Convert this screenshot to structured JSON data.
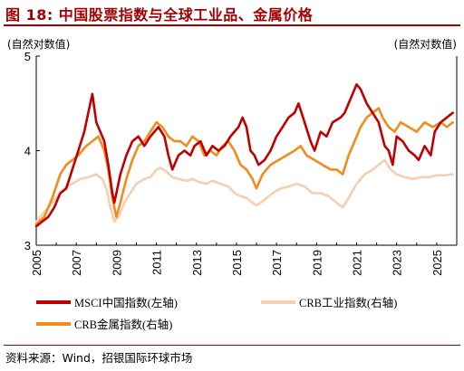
{
  "title": "图 18: 中国股票指数与全球工业品、金属价格",
  "source": "资料来源：Wind，招银国际环球市场",
  "chart_data": {
    "type": "line",
    "ylabel_left": "(自然对数值)",
    "ylabel_right": "(自然对数值)",
    "ylim": [
      3,
      5
    ],
    "yticks": [
      "3",
      "4",
      "5"
    ],
    "xlim": [
      2005,
      2026
    ],
    "xticks": [
      "2005",
      "2007",
      "2009",
      "2011",
      "2013",
      "2015",
      "2017",
      "2019",
      "2021",
      "2023",
      "2025"
    ],
    "legend_position": "bottom",
    "grid": false,
    "series": [
      {
        "name": "MSCI中国指数(左轴)",
        "color": "#c00000",
        "x": [
          2005.0,
          2005.3,
          2005.6,
          2005.9,
          2006.2,
          2006.5,
          2006.8,
          2007.1,
          2007.4,
          2007.6,
          2007.8,
          2008.0,
          2008.2,
          2008.4,
          2008.6,
          2008.8,
          2008.9,
          2009.2,
          2009.5,
          2009.8,
          2010.1,
          2010.4,
          2010.7,
          2010.9,
          2011.1,
          2011.4,
          2011.6,
          2011.8,
          2012.1,
          2012.4,
          2012.7,
          2012.9,
          2013.2,
          2013.5,
          2013.8,
          2014.1,
          2014.4,
          2014.7,
          2014.9,
          2015.1,
          2015.3,
          2015.5,
          2015.7,
          2015.9,
          2016.1,
          2016.4,
          2016.7,
          2017.0,
          2017.3,
          2017.6,
          2017.9,
          2018.1,
          2018.4,
          2018.7,
          2018.9,
          2019.2,
          2019.5,
          2019.8,
          2020.2,
          2020.4,
          2020.7,
          2021.0,
          2021.2,
          2021.5,
          2021.8,
          2022.1,
          2022.4,
          2022.6,
          2022.8,
          2023.0,
          2023.3,
          2023.6,
          2023.9,
          2024.1,
          2024.4,
          2024.7,
          2024.9,
          2025.2,
          2025.5,
          2025.8
        ],
        "values": [
          3.2,
          3.25,
          3.3,
          3.4,
          3.55,
          3.6,
          3.8,
          4.0,
          4.2,
          4.4,
          4.6,
          4.3,
          4.2,
          4.1,
          3.85,
          3.55,
          3.45,
          3.75,
          3.95,
          4.1,
          4.15,
          4.05,
          4.15,
          4.2,
          4.25,
          4.15,
          3.95,
          3.8,
          3.95,
          4.0,
          3.95,
          4.05,
          4.1,
          3.95,
          4.05,
          4.0,
          4.05,
          4.15,
          4.2,
          4.25,
          4.35,
          4.25,
          4.0,
          3.95,
          3.85,
          3.9,
          4.0,
          4.15,
          4.25,
          4.35,
          4.4,
          4.5,
          4.3,
          4.1,
          4.0,
          4.2,
          4.15,
          4.3,
          4.35,
          4.4,
          4.55,
          4.7,
          4.65,
          4.5,
          4.4,
          4.3,
          4.05,
          4.0,
          3.85,
          4.15,
          4.1,
          4.0,
          3.95,
          3.9,
          4.05,
          3.95,
          4.2,
          4.3,
          4.35,
          4.4
        ]
      },
      {
        "name": "CRB工业指数(右轴)",
        "color": "#f4cfb0",
        "x": [
          2005.0,
          2005.4,
          2005.8,
          2006.2,
          2006.5,
          2006.8,
          2007.2,
          2007.6,
          2008.0,
          2008.3,
          2008.5,
          2008.7,
          2008.9,
          2009.1,
          2009.4,
          2009.7,
          2010.0,
          2010.4,
          2010.7,
          2011.0,
          2011.2,
          2011.5,
          2011.8,
          2012.1,
          2012.5,
          2012.8,
          2013.1,
          2013.5,
          2013.8,
          2014.2,
          2014.6,
          2014.9,
          2015.2,
          2015.5,
          2015.8,
          2016.0,
          2016.4,
          2016.8,
          2017.2,
          2017.6,
          2018.0,
          2018.4,
          2018.8,
          2019.2,
          2019.6,
          2020.0,
          2020.3,
          2020.6,
          2021.0,
          2021.4,
          2021.8,
          2022.1,
          2022.4,
          2022.7,
          2023.0,
          2023.4,
          2023.8,
          2024.2,
          2024.6,
          2025.0,
          2025.4,
          2025.8
        ],
        "values": [
          3.25,
          3.35,
          3.45,
          3.55,
          3.62,
          3.65,
          3.7,
          3.72,
          3.75,
          3.7,
          3.6,
          3.4,
          3.25,
          3.3,
          3.45,
          3.55,
          3.65,
          3.7,
          3.72,
          3.8,
          3.82,
          3.78,
          3.72,
          3.7,
          3.68,
          3.7,
          3.67,
          3.65,
          3.68,
          3.65,
          3.62,
          3.55,
          3.52,
          3.5,
          3.45,
          3.42,
          3.48,
          3.55,
          3.6,
          3.62,
          3.65,
          3.62,
          3.55,
          3.55,
          3.52,
          3.45,
          3.4,
          3.5,
          3.65,
          3.75,
          3.8,
          3.85,
          3.9,
          3.8,
          3.75,
          3.72,
          3.7,
          3.72,
          3.72,
          3.74,
          3.74,
          3.75
        ]
      },
      {
        "name": "CRB金属指数(右轴)",
        "color": "#f28a1c",
        "x": [
          2005.0,
          2005.4,
          2005.8,
          2006.2,
          2006.5,
          2006.8,
          2007.1,
          2007.5,
          2007.8,
          2008.1,
          2008.4,
          2008.6,
          2008.8,
          2009.0,
          2009.2,
          2009.5,
          2009.8,
          2010.1,
          2010.4,
          2010.7,
          2011.0,
          2011.3,
          2011.6,
          2011.9,
          2012.2,
          2012.5,
          2012.8,
          2013.1,
          2013.4,
          2013.7,
          2014.0,
          2014.3,
          2014.6,
          2014.9,
          2015.2,
          2015.5,
          2015.8,
          2016.0,
          2016.3,
          2016.7,
          2017.1,
          2017.5,
          2017.9,
          2018.2,
          2018.5,
          2018.9,
          2019.3,
          2019.7,
          2020.0,
          2020.3,
          2020.6,
          2020.9,
          2021.2,
          2021.5,
          2021.8,
          2022.1,
          2022.3,
          2022.6,
          2022.9,
          2023.2,
          2023.6,
          2024.0,
          2024.4,
          2024.8,
          2025.2,
          2025.5,
          2025.8
        ],
        "values": [
          3.22,
          3.3,
          3.5,
          3.75,
          3.85,
          3.9,
          3.95,
          4.05,
          4.1,
          4.15,
          4.0,
          3.8,
          3.5,
          3.3,
          3.45,
          3.7,
          3.9,
          4.05,
          4.1,
          4.2,
          4.3,
          4.25,
          4.15,
          4.1,
          4.1,
          4.05,
          4.15,
          4.1,
          3.95,
          4.0,
          3.95,
          4.05,
          4.1,
          4.0,
          3.85,
          3.8,
          3.7,
          3.6,
          3.75,
          3.85,
          3.9,
          3.95,
          4.0,
          4.05,
          3.95,
          3.9,
          3.85,
          3.8,
          3.8,
          3.75,
          3.95,
          4.1,
          4.25,
          4.35,
          4.4,
          4.45,
          4.35,
          4.25,
          4.2,
          4.3,
          4.25,
          4.2,
          4.3,
          4.25,
          4.3,
          4.25,
          4.3
        ]
      }
    ]
  }
}
